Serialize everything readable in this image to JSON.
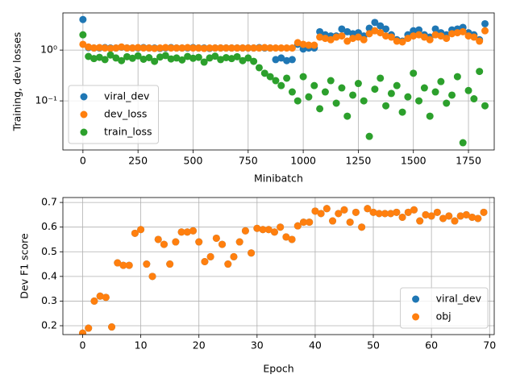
{
  "chart_data": [
    {
      "type": "scatter",
      "xlabel": "Minibatch",
      "ylabel": "Training, dev losses",
      "yscale": "log",
      "grid": true,
      "legend": "lower left",
      "xlim": [
        -91,
        1867
      ],
      "ylim": [
        0.0108,
        5.4
      ],
      "xticks": [
        0,
        250,
        500,
        750,
        1000,
        1250,
        1500,
        1750
      ],
      "yticks": [
        {
          "value": 1,
          "label": "10⁰"
        },
        {
          "value": 0.1,
          "label": "10⁻¹"
        }
      ],
      "x": [
        0,
        25,
        50,
        75,
        100,
        125,
        150,
        175,
        200,
        225,
        250,
        275,
        300,
        325,
        350,
        375,
        400,
        425,
        450,
        475,
        500,
        525,
        550,
        575,
        600,
        625,
        650,
        675,
        700,
        725,
        750,
        775,
        800,
        825,
        850,
        875,
        900,
        925,
        950,
        975,
        1000,
        1025,
        1050,
        1075,
        1100,
        1125,
        1150,
        1175,
        1200,
        1225,
        1250,
        1275,
        1300,
        1325,
        1350,
        1375,
        1400,
        1425,
        1450,
        1475,
        1500,
        1525,
        1550,
        1575,
        1600,
        1625,
        1650,
        1675,
        1700,
        1725,
        1750,
        1775,
        1800,
        1825
      ],
      "series": [
        {
          "name": "viral_dev",
          "color": "#1f77b4",
          "values": [
            4.0,
            1.12,
            1.1,
            1.1,
            1.12,
            1.1,
            1.1,
            1.14,
            1.1,
            1.1,
            1.1,
            1.12,
            1.1,
            1.1,
            1.08,
            1.1,
            1.12,
            1.1,
            1.1,
            1.1,
            1.12,
            1.1,
            1.1,
            1.08,
            1.1,
            1.1,
            1.1,
            1.1,
            1.1,
            1.1,
            1.1,
            1.1,
            1.12,
            1.1,
            1.1,
            0.65,
            0.7,
            0.62,
            0.65,
            1.3,
            1.05,
            1.1,
            1.1,
            2.3,
            2.0,
            1.9,
            1.9,
            2.6,
            2.3,
            2.1,
            2.2,
            1.9,
            2.7,
            3.5,
            3.0,
            2.6,
            2.0,
            1.6,
            1.5,
            2.0,
            2.4,
            2.5,
            2.0,
            1.8,
            2.6,
            2.2,
            2.0,
            2.5,
            2.6,
            2.8,
            2.2,
            2.0,
            1.6,
            3.3
          ]
        },
        {
          "name": "dev_loss",
          "color": "#ff7f0e",
          "values": [
            1.3,
            1.15,
            1.1,
            1.12,
            1.1,
            1.08,
            1.1,
            1.15,
            1.1,
            1.1,
            1.12,
            1.1,
            1.1,
            1.08,
            1.1,
            1.12,
            1.1,
            1.1,
            1.1,
            1.12,
            1.1,
            1.1,
            1.08,
            1.1,
            1.1,
            1.1,
            1.1,
            1.1,
            1.1,
            1.1,
            1.1,
            1.1,
            1.1,
            1.12,
            1.1,
            1.1,
            1.1,
            1.1,
            1.1,
            1.4,
            1.3,
            1.25,
            1.25,
            1.8,
            1.7,
            1.6,
            1.8,
            1.9,
            1.5,
            1.7,
            1.8,
            1.6,
            2.1,
            2.4,
            2.2,
            1.9,
            1.8,
            1.5,
            1.45,
            1.7,
            1.9,
            2.0,
            1.8,
            1.6,
            2.0,
            1.9,
            1.7,
            2.1,
            2.2,
            2.3,
            1.9,
            1.8,
            1.5,
            2.4
          ]
        },
        {
          "name": "train_loss",
          "color": "#2ca02c",
          "values": [
            2.0,
            0.75,
            0.68,
            0.72,
            0.65,
            0.8,
            0.7,
            0.62,
            0.74,
            0.69,
            0.77,
            0.66,
            0.71,
            0.6,
            0.73,
            0.78,
            0.67,
            0.7,
            0.64,
            0.75,
            0.69,
            0.72,
            0.58,
            0.7,
            0.76,
            0.65,
            0.71,
            0.68,
            0.74,
            0.62,
            0.7,
            0.6,
            0.45,
            0.35,
            0.3,
            0.25,
            0.2,
            0.28,
            0.15,
            0.1,
            0.3,
            0.12,
            0.2,
            0.07,
            0.15,
            0.25,
            0.09,
            0.18,
            0.05,
            0.13,
            0.22,
            0.1,
            0.02,
            0.17,
            0.28,
            0.08,
            0.14,
            0.2,
            0.06,
            0.12,
            0.35,
            0.1,
            0.18,
            0.05,
            0.15,
            0.24,
            0.09,
            0.13,
            0.3,
            0.015,
            0.16,
            0.11,
            0.38,
            0.08
          ]
        }
      ]
    },
    {
      "type": "scatter",
      "xlabel": "Epoch",
      "ylabel": "Dev F1 score",
      "grid": true,
      "legend": "lower right",
      "xlim": [
        -3.4,
        70.8
      ],
      "ylim": [
        0.164,
        0.72
      ],
      "xticks": [
        0,
        10,
        20,
        30,
        40,
        50,
        60,
        70
      ],
      "yticks": [
        0.2,
        0.3,
        0.4,
        0.5,
        0.6,
        0.7
      ],
      "x": [
        0,
        1,
        2,
        3,
        4,
        5,
        6,
        7,
        8,
        9,
        10,
        11,
        12,
        13,
        14,
        15,
        16,
        17,
        18,
        19,
        20,
        21,
        22,
        23,
        24,
        25,
        26,
        27,
        28,
        29,
        30,
        31,
        32,
        33,
        34,
        35,
        36,
        37,
        38,
        39,
        40,
        41,
        42,
        43,
        44,
        45,
        46,
        47,
        48,
        49,
        50,
        51,
        52,
        53,
        54,
        55,
        56,
        57,
        58,
        59,
        60,
        61,
        62,
        63,
        64,
        65,
        66,
        67,
        68,
        69
      ],
      "series": [
        {
          "name": "viral_dev",
          "color": "#1f77b4",
          "values": [
            0.17,
            0.19,
            0.3,
            0.32,
            0.315,
            0.195,
            0.455,
            0.445,
            0.445,
            0.575,
            0.59,
            0.45,
            0.4,
            0.55,
            0.53,
            0.45,
            0.54,
            0.58,
            0.58,
            0.585,
            0.54,
            0.46,
            0.48,
            0.555,
            0.53,
            0.45,
            0.48,
            0.54,
            0.585,
            0.495,
            0.595,
            0.59,
            0.59,
            0.58,
            0.6,
            0.56,
            0.55,
            0.605,
            0.62,
            0.62,
            0.665,
            0.655,
            0.675,
            0.625,
            0.655,
            0.67,
            0.62,
            0.66,
            0.6,
            0.675,
            0.66,
            0.655,
            0.655,
            0.655,
            0.66,
            0.64,
            0.66,
            0.67,
            0.625,
            0.65,
            0.645,
            0.66,
            0.635,
            0.645,
            0.625,
            0.645,
            0.65,
            0.64,
            0.635,
            0.66
          ]
        },
        {
          "name": "obj",
          "color": "#ff7f0e",
          "values": [
            0.17,
            0.19,
            0.3,
            0.32,
            0.315,
            0.195,
            0.455,
            0.445,
            0.445,
            0.575,
            0.59,
            0.45,
            0.4,
            0.55,
            0.53,
            0.45,
            0.54,
            0.58,
            0.58,
            0.585,
            0.54,
            0.46,
            0.48,
            0.555,
            0.53,
            0.45,
            0.48,
            0.54,
            0.585,
            0.495,
            0.595,
            0.59,
            0.59,
            0.58,
            0.6,
            0.56,
            0.55,
            0.605,
            0.62,
            0.62,
            0.665,
            0.655,
            0.675,
            0.625,
            0.655,
            0.67,
            0.62,
            0.66,
            0.6,
            0.675,
            0.66,
            0.655,
            0.655,
            0.655,
            0.66,
            0.64,
            0.66,
            0.67,
            0.625,
            0.65,
            0.645,
            0.66,
            0.635,
            0.645,
            0.625,
            0.645,
            0.65,
            0.64,
            0.635,
            0.66
          ]
        }
      ]
    }
  ]
}
